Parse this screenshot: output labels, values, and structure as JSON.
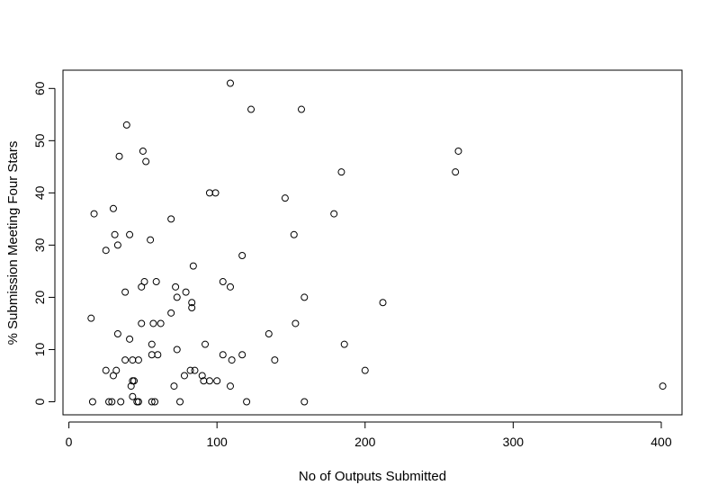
{
  "chart_data": {
    "type": "scatter",
    "title": "",
    "xlabel": "No of Outputs Submitted",
    "ylabel": "% Submission Meeting Four Stars",
    "xlim": [
      -4,
      414
    ],
    "ylim": [
      -2.5,
      63.5
    ],
    "x_ticks": [
      0,
      100,
      200,
      300,
      400
    ],
    "y_ticks": [
      0,
      10,
      20,
      30,
      40,
      50,
      60
    ],
    "marker": "open-circle",
    "grid": false,
    "legend": "none",
    "points": [
      {
        "x": 15,
        "y": 16
      },
      {
        "x": 16,
        "y": 0
      },
      {
        "x": 17,
        "y": 36
      },
      {
        "x": 25,
        "y": 29
      },
      {
        "x": 25,
        "y": 6
      },
      {
        "x": 27,
        "y": 0
      },
      {
        "x": 29,
        "y": 0
      },
      {
        "x": 30,
        "y": 5
      },
      {
        "x": 30,
        "y": 37
      },
      {
        "x": 31,
        "y": 32
      },
      {
        "x": 32,
        "y": 6
      },
      {
        "x": 33,
        "y": 13
      },
      {
        "x": 33,
        "y": 30
      },
      {
        "x": 34,
        "y": 47
      },
      {
        "x": 35,
        "y": 0
      },
      {
        "x": 38,
        "y": 21
      },
      {
        "x": 38,
        "y": 8
      },
      {
        "x": 39,
        "y": 53
      },
      {
        "x": 41,
        "y": 32
      },
      {
        "x": 41,
        "y": 12
      },
      {
        "x": 42,
        "y": 3
      },
      {
        "x": 43,
        "y": 4
      },
      {
        "x": 43,
        "y": 8
      },
      {
        "x": 43,
        "y": 1
      },
      {
        "x": 44,
        "y": 4
      },
      {
        "x": 46,
        "y": 0
      },
      {
        "x": 47,
        "y": 0
      },
      {
        "x": 47,
        "y": 8
      },
      {
        "x": 49,
        "y": 22
      },
      {
        "x": 49,
        "y": 15
      },
      {
        "x": 50,
        "y": 48
      },
      {
        "x": 51,
        "y": 23
      },
      {
        "x": 52,
        "y": 46
      },
      {
        "x": 55,
        "y": 31
      },
      {
        "x": 56,
        "y": 9
      },
      {
        "x": 56,
        "y": 11
      },
      {
        "x": 56,
        "y": 0
      },
      {
        "x": 57,
        "y": 15
      },
      {
        "x": 58,
        "y": 0
      },
      {
        "x": 59,
        "y": 23
      },
      {
        "x": 60,
        "y": 9
      },
      {
        "x": 62,
        "y": 15
      },
      {
        "x": 69,
        "y": 35
      },
      {
        "x": 69,
        "y": 17
      },
      {
        "x": 71,
        "y": 3
      },
      {
        "x": 72,
        "y": 22
      },
      {
        "x": 73,
        "y": 10
      },
      {
        "x": 73,
        "y": 20
      },
      {
        "x": 75,
        "y": 0
      },
      {
        "x": 78,
        "y": 5
      },
      {
        "x": 79,
        "y": 21
      },
      {
        "x": 82,
        "y": 6
      },
      {
        "x": 83,
        "y": 19
      },
      {
        "x": 83,
        "y": 18
      },
      {
        "x": 84,
        "y": 26
      },
      {
        "x": 85,
        "y": 6
      },
      {
        "x": 90,
        "y": 5
      },
      {
        "x": 91,
        "y": 4
      },
      {
        "x": 92,
        "y": 11
      },
      {
        "x": 95,
        "y": 40
      },
      {
        "x": 95,
        "y": 4
      },
      {
        "x": 99,
        "y": 40
      },
      {
        "x": 100,
        "y": 4
      },
      {
        "x": 104,
        "y": 9
      },
      {
        "x": 104,
        "y": 23
      },
      {
        "x": 109,
        "y": 22
      },
      {
        "x": 109,
        "y": 3
      },
      {
        "x": 109,
        "y": 61
      },
      {
        "x": 110,
        "y": 8
      },
      {
        "x": 117,
        "y": 28
      },
      {
        "x": 117,
        "y": 9
      },
      {
        "x": 120,
        "y": 0
      },
      {
        "x": 123,
        "y": 56
      },
      {
        "x": 135,
        "y": 13
      },
      {
        "x": 139,
        "y": 8
      },
      {
        "x": 146,
        "y": 39
      },
      {
        "x": 152,
        "y": 32
      },
      {
        "x": 153,
        "y": 15
      },
      {
        "x": 157,
        "y": 56
      },
      {
        "x": 159,
        "y": 20
      },
      {
        "x": 159,
        "y": 0
      },
      {
        "x": 179,
        "y": 36
      },
      {
        "x": 184,
        "y": 44
      },
      {
        "x": 186,
        "y": 11
      },
      {
        "x": 200,
        "y": 6
      },
      {
        "x": 212,
        "y": 19
      },
      {
        "x": 261,
        "y": 44
      },
      {
        "x": 263,
        "y": 48
      },
      {
        "x": 401,
        "y": 3
      }
    ]
  }
}
